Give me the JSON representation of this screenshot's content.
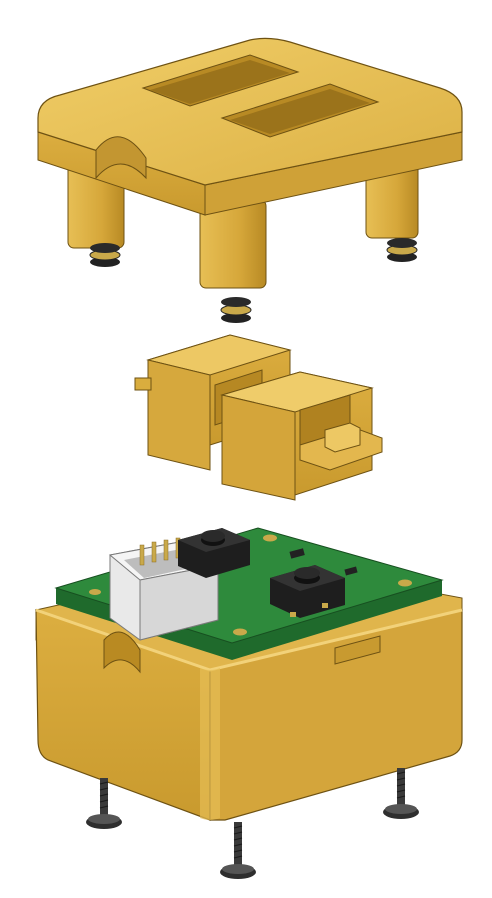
{
  "scene": {
    "kind": "exploded-3d-render",
    "parts": [
      {
        "name": "lid",
        "icon": "lid-with-two-windows"
      },
      {
        "name": "slider-frame-left",
        "icon": "c-frame"
      },
      {
        "name": "slider-frame-right",
        "icon": "c-frame-with-tab"
      },
      {
        "name": "circuit-board",
        "icon": "pcb-with-two-buttons-and-connector"
      },
      {
        "name": "base-enclosure",
        "icon": "open-box"
      },
      {
        "name": "screws",
        "icon": "machine-screw"
      }
    ]
  },
  "colors": {
    "background": "#ffffff",
    "plastic_light": "#e8c25a",
    "plastic_mid": "#d9ad3e",
    "plastic_dark": "#b98a22",
    "plastic_edge": "#6e5213",
    "pcb_green": "#2e8a3c",
    "pcb_dark": "#1f6a2c",
    "pad_gold": "#c9a94a",
    "switch_black": "#1e1e1e",
    "connector_white": "#e9e9e9",
    "screw_grey": "#3a3a3a"
  }
}
